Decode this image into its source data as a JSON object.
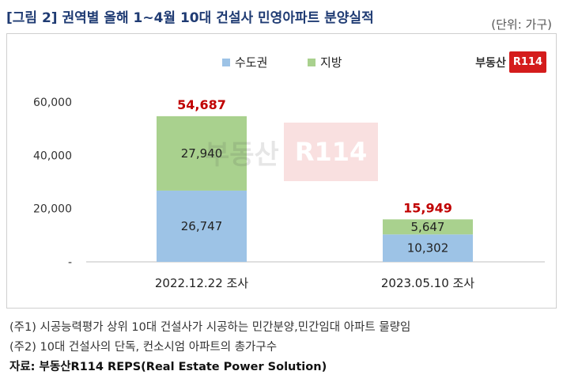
{
  "header": {
    "title": "[그림 2] 권역별 올해 1~4월 10대 건설사 민영아파트 분양실적",
    "unit": "(단위: 가구)"
  },
  "logo": {
    "text": "부동산",
    "badge": "R114"
  },
  "watermark": {
    "text": "부동산",
    "badge": "R114"
  },
  "notes": {
    "note1": "(주1) 시공능력평가 상위 10대 건설사가 시공하는 민간분양,민간임대 아파트 물량임",
    "note2": "(주2) 10대 건설사의 단독, 컨소시엄 아파트의 총가구수",
    "source": "자료: 부동산R114 REPS(Real Estate Power Solution)"
  },
  "colors": {
    "capital": "#9dc3e6",
    "local": "#a9d18e",
    "total_label": "#c00000"
  },
  "chart_data": {
    "type": "bar",
    "stacked": true,
    "categories": [
      "2022.12.22  조사",
      "2023.05.10  조사"
    ],
    "series": [
      {
        "name": "수도권",
        "values": [
          26747,
          10302
        ],
        "labels": [
          "26,747",
          "10,302"
        ]
      },
      {
        "name": "지방",
        "values": [
          27940,
          5647
        ],
        "labels": [
          "27,940",
          "5,647"
        ]
      }
    ],
    "totals": [
      54687,
      15949
    ],
    "total_labels": [
      "54,687",
      "15,949"
    ],
    "ylim": [
      0,
      60000
    ],
    "yticks": [
      0,
      20000,
      40000,
      60000
    ],
    "ytick_labels": [
      "-",
      "20,000",
      "40,000",
      "60,000"
    ],
    "legend": "top-center",
    "grid": false
  }
}
